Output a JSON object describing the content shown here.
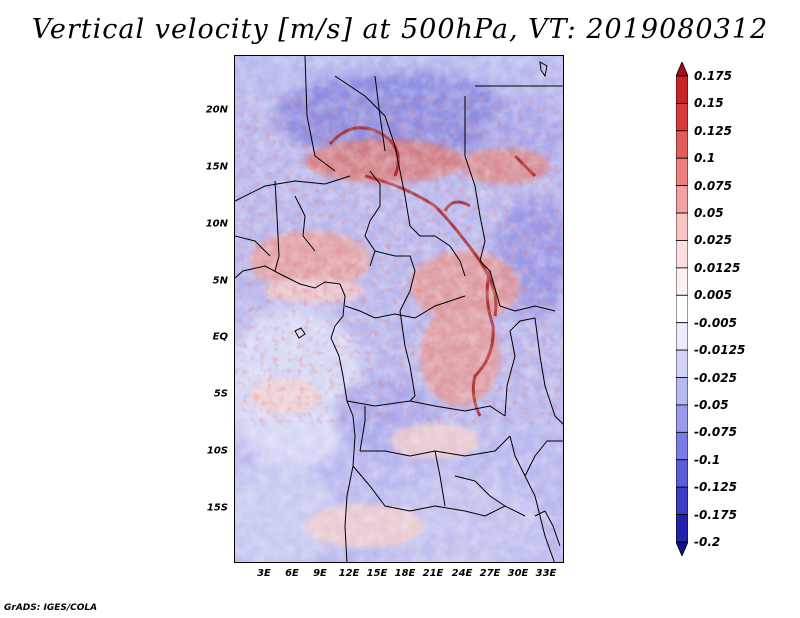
{
  "title": "Vertical velocity [m/s] at 500hPa, VT: 2019080312",
  "credit": "GrADS: IGES/COLA",
  "map": {
    "y_ticks": [
      "20N",
      "15N",
      "10N",
      "5N",
      "EQ",
      "5S",
      "10S",
      "15S"
    ],
    "x_ticks": [
      "3E",
      "6E",
      "9E",
      "12E",
      "15E",
      "18E",
      "21E",
      "24E",
      "27E",
      "30E",
      "33E"
    ],
    "lat_range": [
      -19.5,
      25
    ],
    "lon_range": [
      0,
      35
    ]
  },
  "colorbar": {
    "levels": [
      "0.175",
      "0.15",
      "0.125",
      "0.1",
      "0.075",
      "0.05",
      "0.025",
      "0.0125",
      "0.005",
      "-0.005",
      "-0.0125",
      "-0.025",
      "-0.05",
      "-0.075",
      "-0.1",
      "-0.125",
      "-0.175",
      "-0.2"
    ],
    "colors": [
      "#a50f15",
      "#c8242a",
      "#d83a3a",
      "#e35c5c",
      "#ec7f7f",
      "#f3a1a1",
      "#f8c4c4",
      "#fbdede",
      "#fdf0f0",
      "#ffffff",
      "#ececfc",
      "#d4d4f8",
      "#b8b8f3",
      "#9a9aec",
      "#7b7be4",
      "#5c5cd8",
      "#3c3cc6",
      "#2323aa",
      "#120f8c"
    ]
  }
}
